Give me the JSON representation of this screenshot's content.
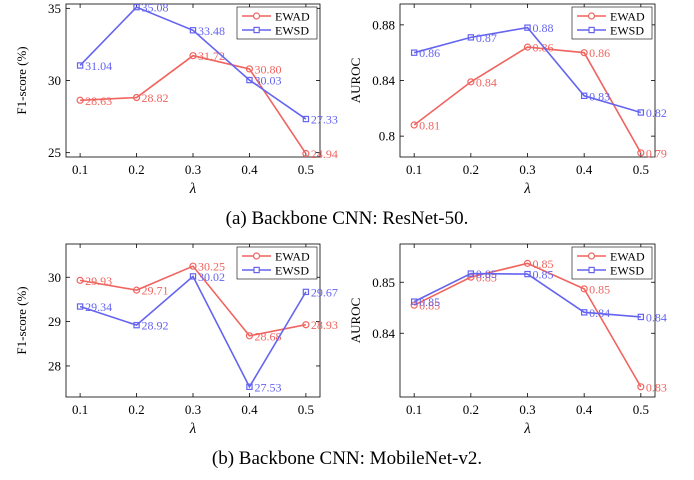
{
  "colors": {
    "ewad": "#f0645f",
    "ewsd": "#6464f0",
    "axis": "#000000"
  },
  "captions": {
    "a": "(a) Backbone CNN: ResNet-50.",
    "b": "(b) Backbone CNN: MobileNet-v2."
  },
  "chart_data": [
    {
      "id": "a-f1",
      "type": "line",
      "x": [
        0.1,
        0.2,
        0.3,
        0.4,
        0.5
      ],
      "xticks": [
        "0.1",
        "0.2",
        "0.3",
        "0.4",
        "0.5"
      ],
      "xlabel": "λ",
      "ylabel": "F1-score (%)",
      "ylim": [
        24.7,
        35.3
      ],
      "yticks": [
        25,
        30,
        35
      ],
      "ytick_labels": [
        "25",
        "30",
        "35"
      ],
      "legend": "top-right",
      "series": [
        {
          "name": "EWAD",
          "marker": "circle",
          "values": [
            28.63,
            28.82,
            31.72,
            30.8,
            24.94
          ],
          "labels": [
            "28.63",
            "28.82",
            "31.72",
            "30.80",
            "24.94"
          ]
        },
        {
          "name": "EWSD",
          "marker": "square",
          "values": [
            31.04,
            35.08,
            33.48,
            30.03,
            27.33
          ],
          "labels": [
            "31.04",
            "35.08",
            "33.48",
            "30.03",
            "27.33"
          ]
        }
      ]
    },
    {
      "id": "a-auroc",
      "type": "line",
      "x": [
        0.1,
        0.2,
        0.3,
        0.4,
        0.5
      ],
      "xticks": [
        "0.1",
        "0.2",
        "0.3",
        "0.4",
        "0.5"
      ],
      "xlabel": "λ",
      "ylabel": "AUROC",
      "ylim": [
        0.785,
        0.895
      ],
      "yticks": [
        0.8,
        0.84,
        0.88
      ],
      "ytick_labels": [
        "0.8",
        "0.84",
        "0.88"
      ],
      "legend": "top-right",
      "series": [
        {
          "name": "EWAD",
          "marker": "circle",
          "values": [
            0.808,
            0.839,
            0.864,
            0.86,
            0.788
          ],
          "labels": [
            "0.81",
            "0.84",
            "0.86",
            "0.86",
            "0.79"
          ]
        },
        {
          "name": "EWSD",
          "marker": "square",
          "values": [
            0.86,
            0.871,
            0.878,
            0.829,
            0.817
          ],
          "labels": [
            "0.86",
            "0.87",
            "0.88",
            "0.83",
            "0.82"
          ]
        }
      ]
    },
    {
      "id": "b-f1",
      "type": "line",
      "x": [
        0.1,
        0.2,
        0.3,
        0.4,
        0.5
      ],
      "xticks": [
        "0.1",
        "0.2",
        "0.3",
        "0.4",
        "0.5"
      ],
      "xlabel": "λ",
      "ylabel": "F1-score (%)",
      "ylim": [
        27.3,
        30.75
      ],
      "yticks": [
        28,
        29,
        30
      ],
      "ytick_labels": [
        "28",
        "29",
        "30"
      ],
      "legend": "top-right",
      "series": [
        {
          "name": "EWAD",
          "marker": "circle",
          "values": [
            29.93,
            29.71,
            30.25,
            28.68,
            28.93
          ],
          "labels": [
            "29.93",
            "29.71",
            "30.25",
            "28.68",
            "28.93"
          ]
        },
        {
          "name": "EWSD",
          "marker": "square",
          "values": [
            29.34,
            28.92,
            30.02,
            27.53,
            29.67
          ],
          "labels": [
            "29.34",
            "28.92",
            "30.02",
            "27.53",
            "29.67"
          ]
        }
      ]
    },
    {
      "id": "b-auroc",
      "type": "line",
      "x": [
        0.1,
        0.2,
        0.3,
        0.4,
        0.5
      ],
      "xticks": [
        "0.1",
        "0.2",
        "0.3",
        "0.4",
        "0.5"
      ],
      "xlabel": "λ",
      "ylabel": "AUROC",
      "ylim": [
        0.8275,
        0.8575
      ],
      "yticks": [
        0.84,
        0.85
      ],
      "ytick_labels": [
        "0.84",
        "0.85"
      ],
      "legend": "top-right",
      "series": [
        {
          "name": "EWAD",
          "marker": "circle",
          "values": [
            0.8455,
            0.851,
            0.8537,
            0.8487,
            0.8295
          ],
          "labels": [
            "0.85",
            "0.85",
            "0.85",
            "0.85",
            "0.83"
          ]
        },
        {
          "name": "EWSD",
          "marker": "square",
          "values": [
            0.8462,
            0.8517,
            0.8516,
            0.8441,
            0.8432
          ],
          "labels": [
            "0.85",
            "0.85",
            "0.85",
            "0.84",
            "0.84"
          ]
        }
      ]
    }
  ]
}
